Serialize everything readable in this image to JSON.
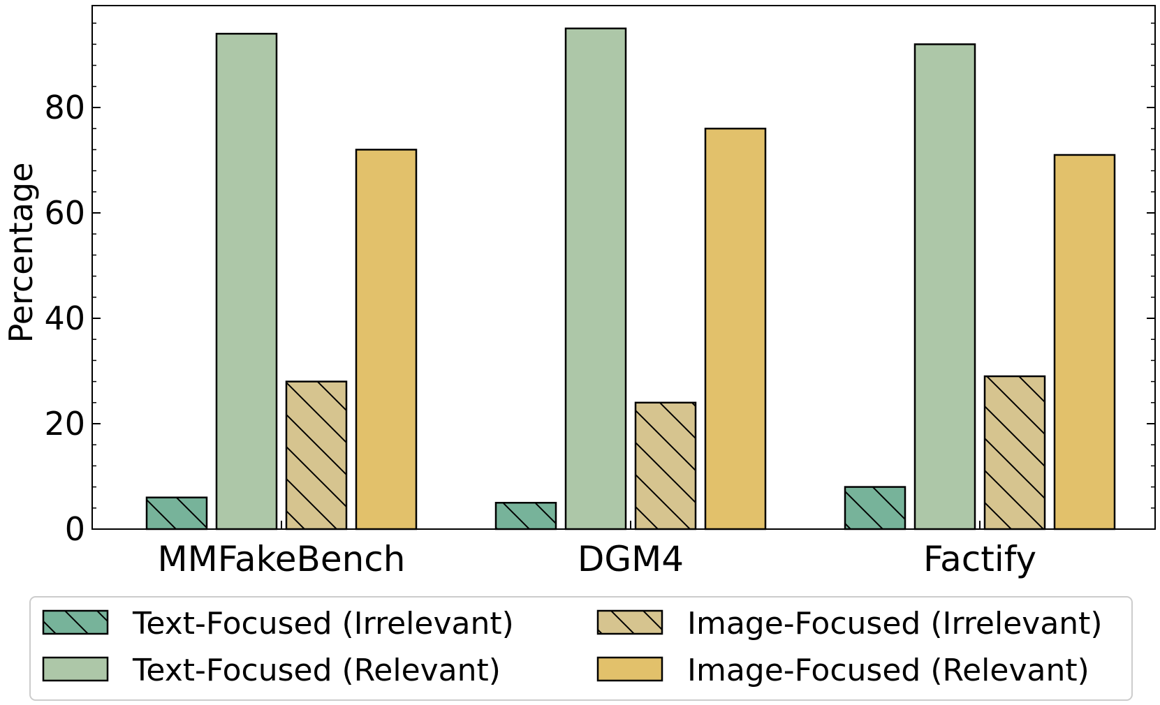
{
  "chart_data": {
    "type": "bar",
    "title": "",
    "xlabel": "",
    "ylabel": "Percentage",
    "ylim": [
      0,
      100
    ],
    "yticks": [
      "0",
      "20",
      "40",
      "60",
      "80"
    ],
    "categories": [
      "MMFakeBench",
      "DGM4",
      "Factify"
    ],
    "series": [
      {
        "name": "Text-Focused (Irrelevant)",
        "values": [
          6,
          5,
          8
        ],
        "color": "#77b39a",
        "hatch": true
      },
      {
        "name": "Text-Focused (Relevant)",
        "values": [
          94,
          95,
          92
        ],
        "color": "#adc7a8",
        "hatch": false
      },
      {
        "name": "Image-Focused (Irrelevant)",
        "values": [
          28,
          24,
          29
        ],
        "color": "#d6c48f",
        "hatch": true
      },
      {
        "name": "Image-Focused (Relevant)",
        "values": [
          72,
          76,
          71
        ],
        "color": "#e2c16b",
        "hatch": false
      }
    ],
    "legend": {
      "location": "bottom",
      "entries": [
        "Text-Focused (Irrelevant)",
        "Image-Focused (Irrelevant)",
        "Text-Focused (Relevant)",
        "Image-Focused (Relevant)"
      ]
    },
    "grid": false
  }
}
